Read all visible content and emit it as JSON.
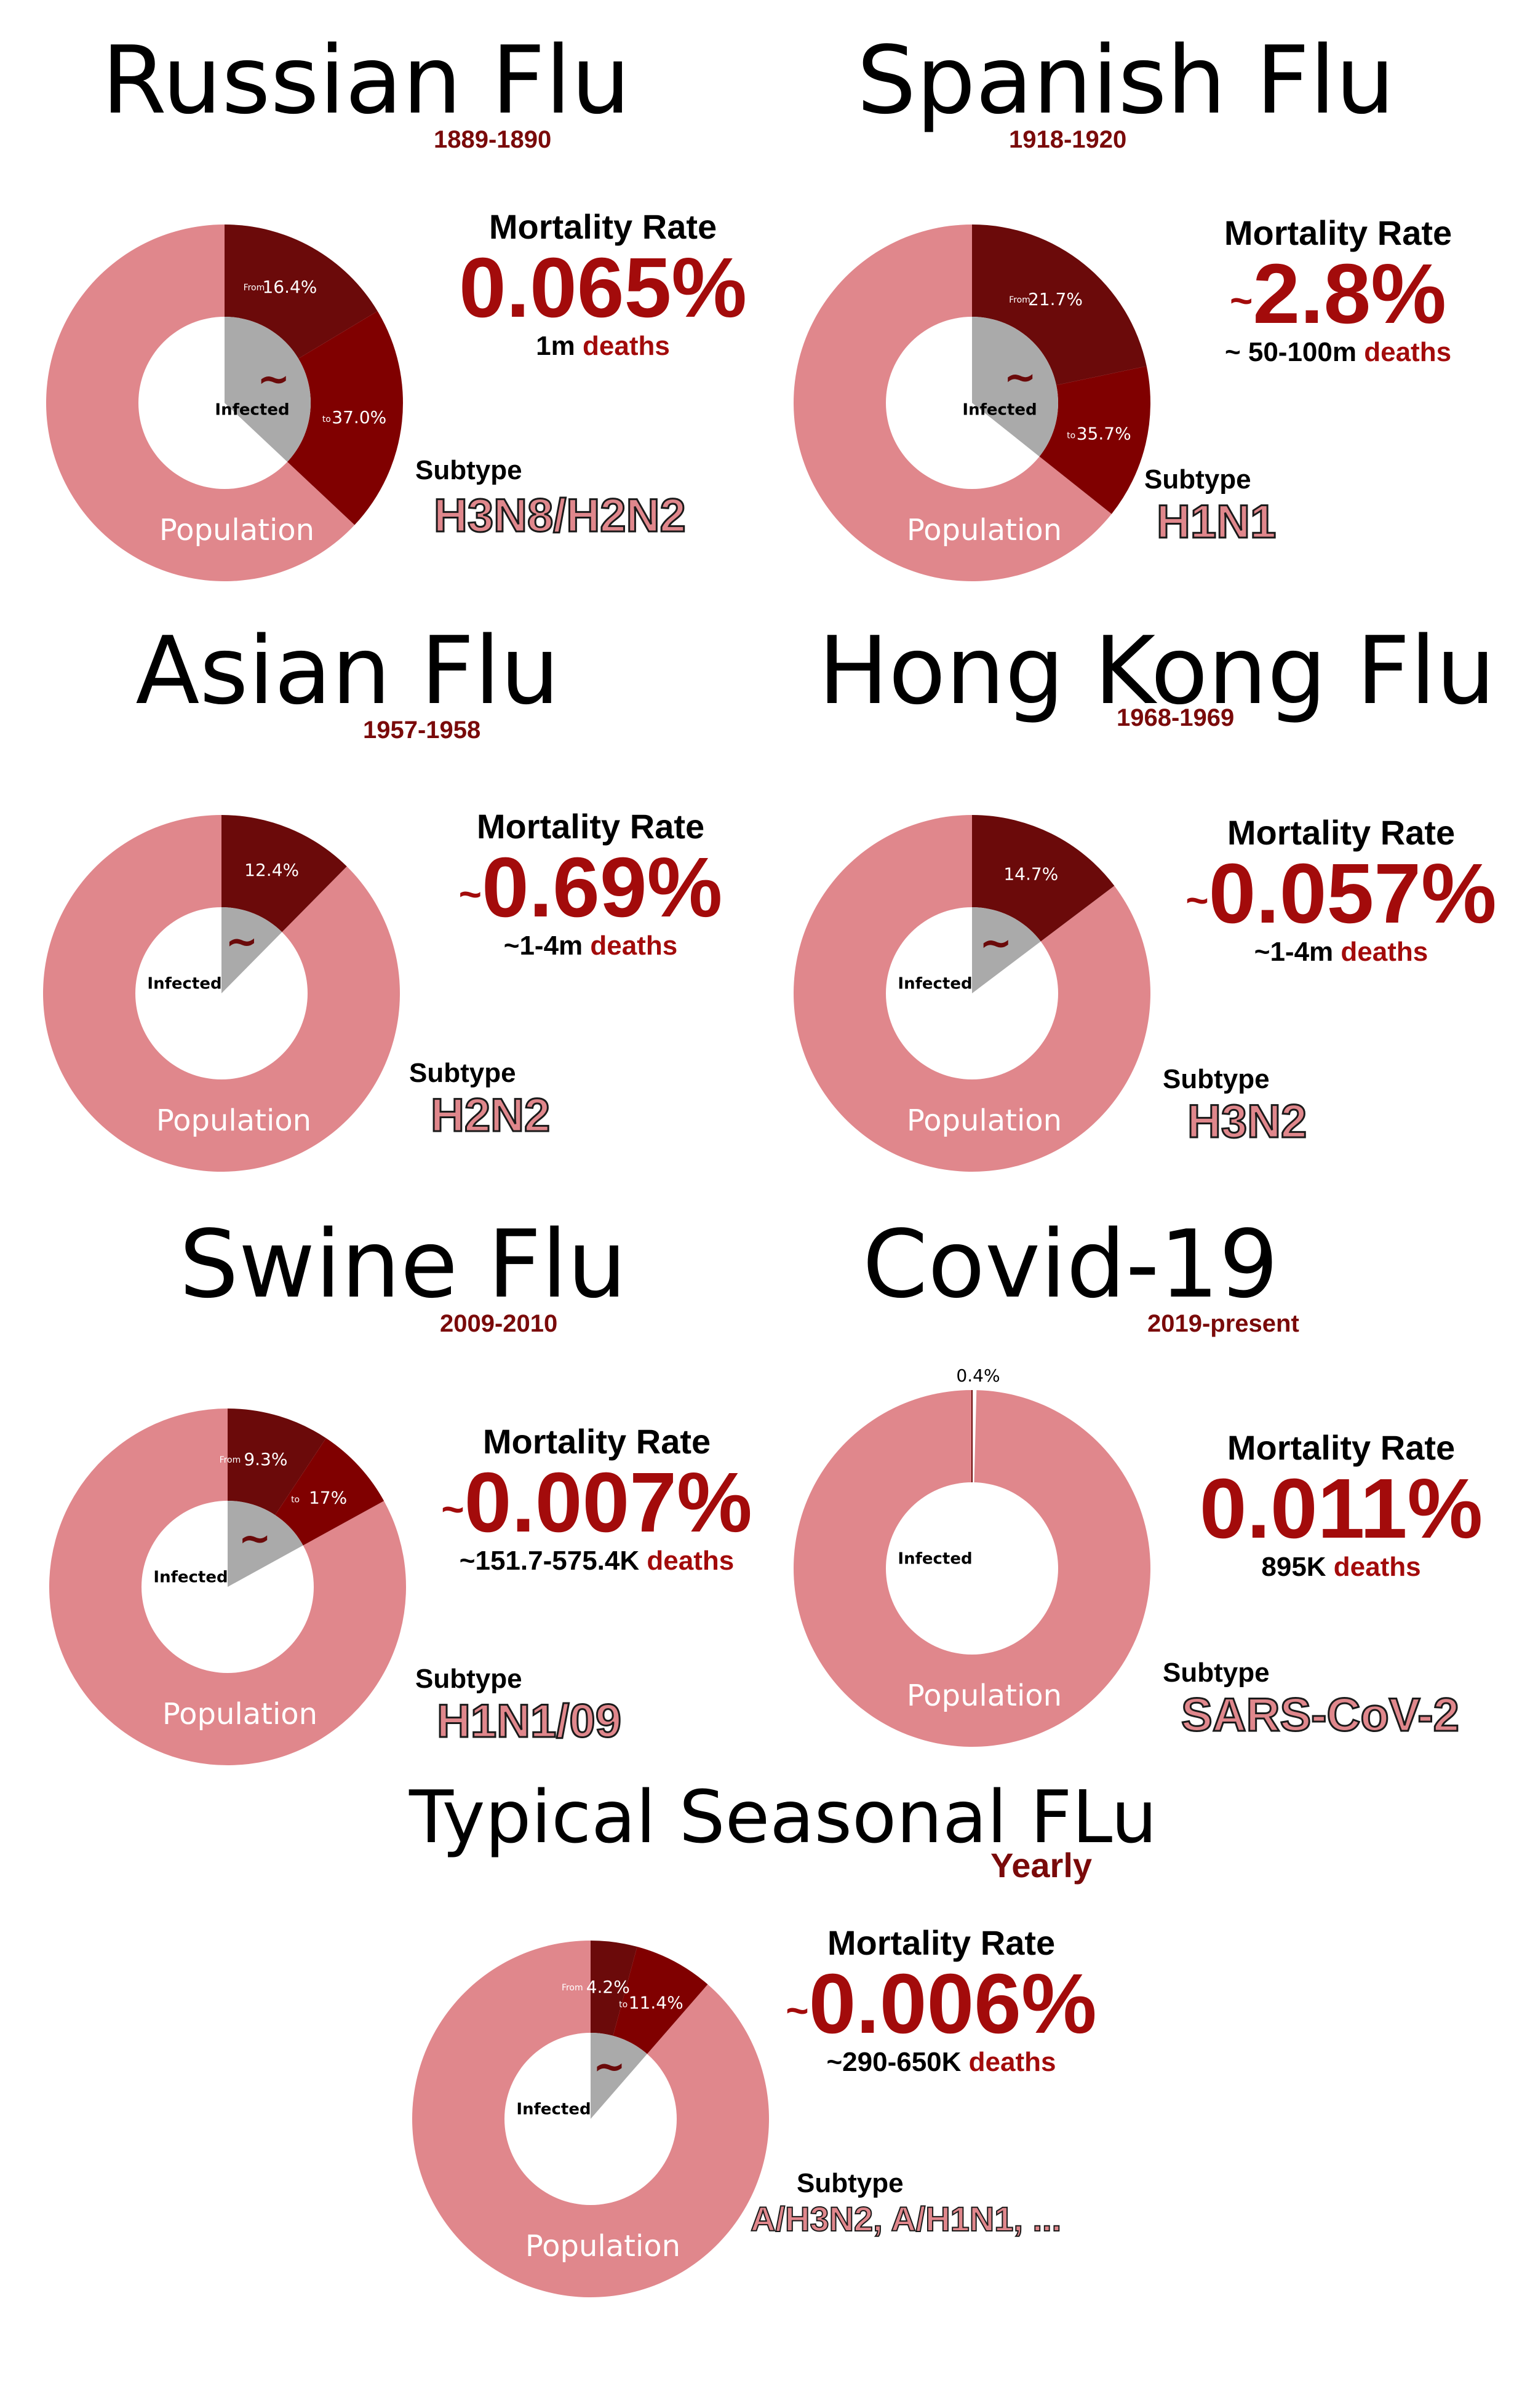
{
  "colors": {
    "population": "#e0878c",
    "from_slice": "#6b0a0a",
    "to_slice": "#800000",
    "uncertain": "#aaaaaa",
    "hole": "#ffffff",
    "accent": "#a30b0b",
    "years": "#7a0a0a"
  },
  "chart_data": [
    {
      "type": "pie",
      "variant": "donut",
      "title": "Russian Flu",
      "subtitle": "1889-1890",
      "infected_from": 16.4,
      "infected_to": 37.0,
      "labels": {
        "from_prefix": "From",
        "from": "16.4%",
        "to_prefix": "to",
        "to": "37.0%",
        "infected": "Infected",
        "population": "Population",
        "uncertain": "~"
      },
      "mortality_label": "Mortality Rate",
      "mortality_tilde": "",
      "mortality_rate": "0.065%",
      "deaths_value": "1m",
      "deaths_word": "deaths",
      "subtype_label": "Subtype",
      "subtype": "H3N8/H2N2"
    },
    {
      "type": "pie",
      "variant": "donut",
      "title": "Spanish Flu",
      "subtitle": "1918-1920",
      "infected_from": 21.7,
      "infected_to": 35.7,
      "labels": {
        "from_prefix": "From",
        "from": "21.7%",
        "to_prefix": "to",
        "to": "35.7%",
        "infected": "Infected",
        "population": "Population",
        "uncertain": "~"
      },
      "mortality_label": "Mortality Rate",
      "mortality_tilde": "~",
      "mortality_rate": "2.8%",
      "deaths_value": "~ 50-100m",
      "deaths_word": "deaths",
      "subtype_label": "Subtype",
      "subtype": "H1N1"
    },
    {
      "type": "pie",
      "variant": "donut",
      "title": "Asian Flu",
      "subtitle": "1957-1958",
      "infected_from": 12.4,
      "infected_to": null,
      "labels": {
        "from": "12.4%",
        "infected": "Infected",
        "population": "Population",
        "uncertain": "~"
      },
      "mortality_label": "Mortality Rate",
      "mortality_tilde": "~",
      "mortality_rate": "0.69%",
      "deaths_value": "~1-4m",
      "deaths_word": "deaths",
      "subtype_label": "Subtype",
      "subtype": "H2N2"
    },
    {
      "type": "pie",
      "variant": "donut",
      "title": "Hong Kong Flu",
      "subtitle": "1968-1969",
      "infected_from": 14.7,
      "infected_to": null,
      "labels": {
        "from": "14.7%",
        "infected": "Infected",
        "population": "Population",
        "uncertain": "~"
      },
      "mortality_label": "Mortality Rate",
      "mortality_tilde": "~",
      "mortality_rate": "0.057%",
      "deaths_value": "~1-4m",
      "deaths_word": "deaths",
      "subtype_label": "Subtype",
      "subtype": "H3N2"
    },
    {
      "type": "pie",
      "variant": "donut",
      "title": "Swine Flu",
      "subtitle": "2009-2010",
      "infected_from": 9.3,
      "infected_to": 17,
      "labels": {
        "from_prefix": "From",
        "from": "9.3%",
        "to_prefix": "to",
        "to": "17%",
        "infected": "Infected",
        "population": "Population",
        "uncertain": "~"
      },
      "mortality_label": "Mortality Rate",
      "mortality_tilde": "~",
      "mortality_rate": "0.007%",
      "deaths_value": "~151.7-575.4K",
      "deaths_word": "deaths",
      "subtype_label": "Subtype",
      "subtype": "H1N1/09"
    },
    {
      "type": "pie",
      "variant": "donut",
      "title": "Covid-19",
      "subtitle": "2019-present",
      "infected_from": 0.4,
      "infected_to": null,
      "labels": {
        "from": "0.4%",
        "infected": "Infected",
        "population": "Population"
      },
      "mortality_label": "Mortality Rate",
      "mortality_tilde": "",
      "mortality_rate": "0.011%",
      "deaths_value": "895K",
      "deaths_word": "deaths",
      "subtype_label": "Subtype",
      "subtype": "SARS-CoV-2"
    },
    {
      "type": "pie",
      "variant": "donut",
      "title": "Typical Seasonal FLu",
      "subtitle": "Yearly",
      "infected_from": 4.2,
      "infected_to": 11.4,
      "labels": {
        "from_prefix": "From",
        "from": "4.2%",
        "to_prefix": "to",
        "to": "11.4%",
        "infected": "Infected",
        "population": "Population",
        "uncertain": "~"
      },
      "mortality_label": "Mortality Rate",
      "mortality_tilde": "~",
      "mortality_rate": "0.006%",
      "deaths_value": "~290-650K",
      "deaths_word": "deaths",
      "subtype_label": "Subtype",
      "subtype": "A/H3N2, A/H1N1, ..."
    }
  ]
}
